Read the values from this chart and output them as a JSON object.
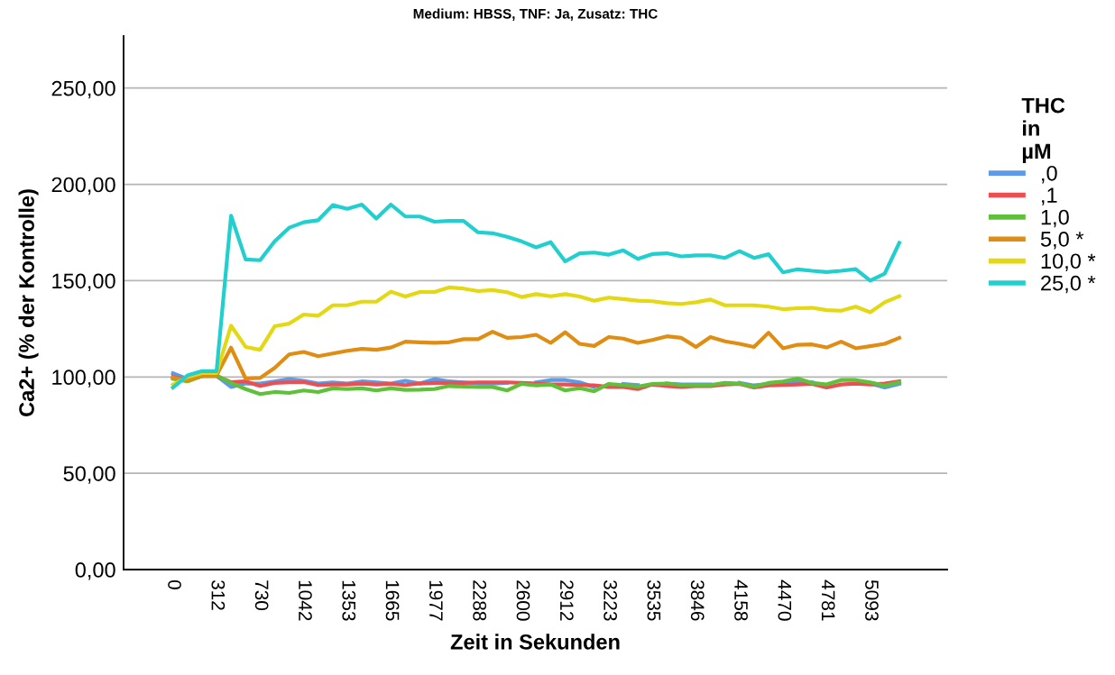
{
  "chart_data": {
    "type": "line",
    "title": "Medium: HBSS, TNF: Ja, Zusatz: THC",
    "xlabel": "Zeit in Sekunden",
    "ylabel": "Ca2+ (% der Kontrolle)",
    "legend_title": "THC\nin\nµM",
    "categories": [
      "0",
      null,
      null,
      "312",
      null,
      null,
      "730",
      null,
      null,
      "1042",
      null,
      null,
      "1353",
      null,
      null,
      "1665",
      null,
      null,
      "1977",
      null,
      null,
      "2288",
      null,
      null,
      "2600",
      null,
      null,
      "2912",
      null,
      null,
      "3223",
      null,
      null,
      "3535",
      null,
      null,
      "3846",
      null,
      null,
      "4158",
      null,
      null,
      "4470",
      null,
      null,
      "4781",
      null,
      null,
      "5093",
      null,
      null
    ],
    "ylim": [
      0,
      277
    ],
    "yticks": [
      {
        "value": 0,
        "label": "0,00"
      },
      {
        "value": 50,
        "label": "50,00"
      },
      {
        "value": 100,
        "label": "100,00"
      },
      {
        "value": 150,
        "label": "150,00"
      },
      {
        "value": 200,
        "label": "200,00"
      },
      {
        "value": 250,
        "label": "250,00"
      }
    ],
    "grid": "y",
    "legend": "right",
    "marker": "none",
    "line_style": "solid",
    "series": [
      {
        "name": ",0",
        "color": "#5b9be8",
        "values": [
          101.9,
          99,
          100.5,
          100.5,
          94.8,
          96.6,
          96.6,
          97.7,
          98.9,
          98,
          96.6,
          97.2,
          96.6,
          97.7,
          97.2,
          96.6,
          98,
          96.6,
          98.9,
          97.7,
          97.2,
          96.6,
          96.6,
          96.9,
          null,
          97.2,
          98.4,
          98.4,
          97.2,
          94.8,
          null,
          96.4,
          95.8,
          null,
          96.6,
          96.1,
          96.1,
          96.1,
          null,
          96.9,
          95.6,
          96.4,
          96.9,
          97.7,
          97.2,
          null,
          null,
          null,
          96.6,
          94.5,
          96.4
        ]
      },
      {
        "name": ",1",
        "color": "#ec4f53",
        "values": [
          100,
          98.4,
          100.5,
          100.5,
          97.3,
          97.7,
          95.3,
          96.9,
          97.2,
          97.3,
          95.8,
          96.1,
          96.1,
          96.6,
          96.1,
          96.4,
          95.8,
          96.6,
          96.9,
          96.9,
          96.9,
          97.2,
          97.2,
          97.2,
          96.9,
          96.6,
          96.1,
          96.1,
          95.8,
          95.6,
          94.8,
          94.8,
          93.7,
          96.1,
          95.3,
          94.8,
          95.3,
          95.3,
          96.1,
          96.4,
          94.5,
          95.6,
          95.8,
          96.1,
          96.4,
          94.5,
          96.1,
          96.6,
          96.1,
          96.6,
          97.7
        ]
      },
      {
        "name": "1,0",
        "color": "#5fc13a",
        "values": [
          99,
          97.7,
          100.5,
          100.8,
          96.9,
          93.7,
          91.1,
          92.2,
          91.7,
          93,
          92.2,
          94.1,
          93.7,
          94.1,
          93,
          94.1,
          93.3,
          93.4,
          93.7,
          95.3,
          95,
          94.8,
          94.8,
          93,
          96.4,
          95.6,
          96.1,
          93,
          94.2,
          92.6,
          96.4,
          95.8,
          95,
          96.4,
          96.6,
          95.8,
          95.8,
          95.8,
          96.9,
          96.6,
          95,
          96.9,
          97.7,
          99.2,
          96.9,
          96.1,
          98.4,
          98.4,
          97.2,
          95.6,
          97.2
        ]
      },
      {
        "name": "5,0 *",
        "color": "#e08d14",
        "values": [
          99.7,
          98,
          100.8,
          100.8,
          115.2,
          99.2,
          99.5,
          104.7,
          111.7,
          113,
          110.8,
          112.2,
          113.6,
          114.6,
          114.1,
          115.3,
          118.3,
          118,
          117.7,
          118,
          119.6,
          119.6,
          123.5,
          120.3,
          120.7,
          121.9,
          117.7,
          123.2,
          117.2,
          116.1,
          120.7,
          119.9,
          117.7,
          119.2,
          121.1,
          120.3,
          115.6,
          120.7,
          118.5,
          117.2,
          115.6,
          123,
          114.9,
          116.7,
          116.9,
          115.3,
          118.3,
          114.9,
          116,
          117.2,
          120.3
        ]
      },
      {
        "name": "10,0 *",
        "color": "#e3d812",
        "values": [
          96,
          100,
          102,
          102,
          126.6,
          115.6,
          114.1,
          126.3,
          127.7,
          132.4,
          131.8,
          137.2,
          137.2,
          139.1,
          139.1,
          144.3,
          141.8,
          144.1,
          144.1,
          146.5,
          145.9,
          144.6,
          145.1,
          144,
          141.5,
          143,
          141.9,
          143,
          141.8,
          139.6,
          141.2,
          140.4,
          139.6,
          139.3,
          138.3,
          137.9,
          138.8,
          140.2,
          137.2,
          137.2,
          137.2,
          136.5,
          135.2,
          135.7,
          135.9,
          134.7,
          134.4,
          136.5,
          133.6,
          138.8,
          141.9
        ]
      },
      {
        "name": "25,0 *",
        "color": "#22cfcf",
        "values": [
          94.5,
          100.8,
          103,
          103,
          183.7,
          161,
          160.6,
          170.4,
          177.5,
          180.3,
          181.4,
          189.2,
          187.3,
          189.5,
          182.2,
          189.5,
          183.3,
          183.3,
          180.6,
          181,
          181,
          175.1,
          174.6,
          172.8,
          170.4,
          167.3,
          170,
          160,
          164.2,
          164.6,
          163.5,
          165.7,
          161.3,
          163.8,
          164.2,
          162.6,
          163.1,
          163.1,
          161.8,
          165.3,
          161.8,
          163.7,
          154.3,
          155.9,
          155.1,
          154.5,
          155.1,
          156,
          150,
          153.7,
          169.6
        ]
      }
    ]
  }
}
